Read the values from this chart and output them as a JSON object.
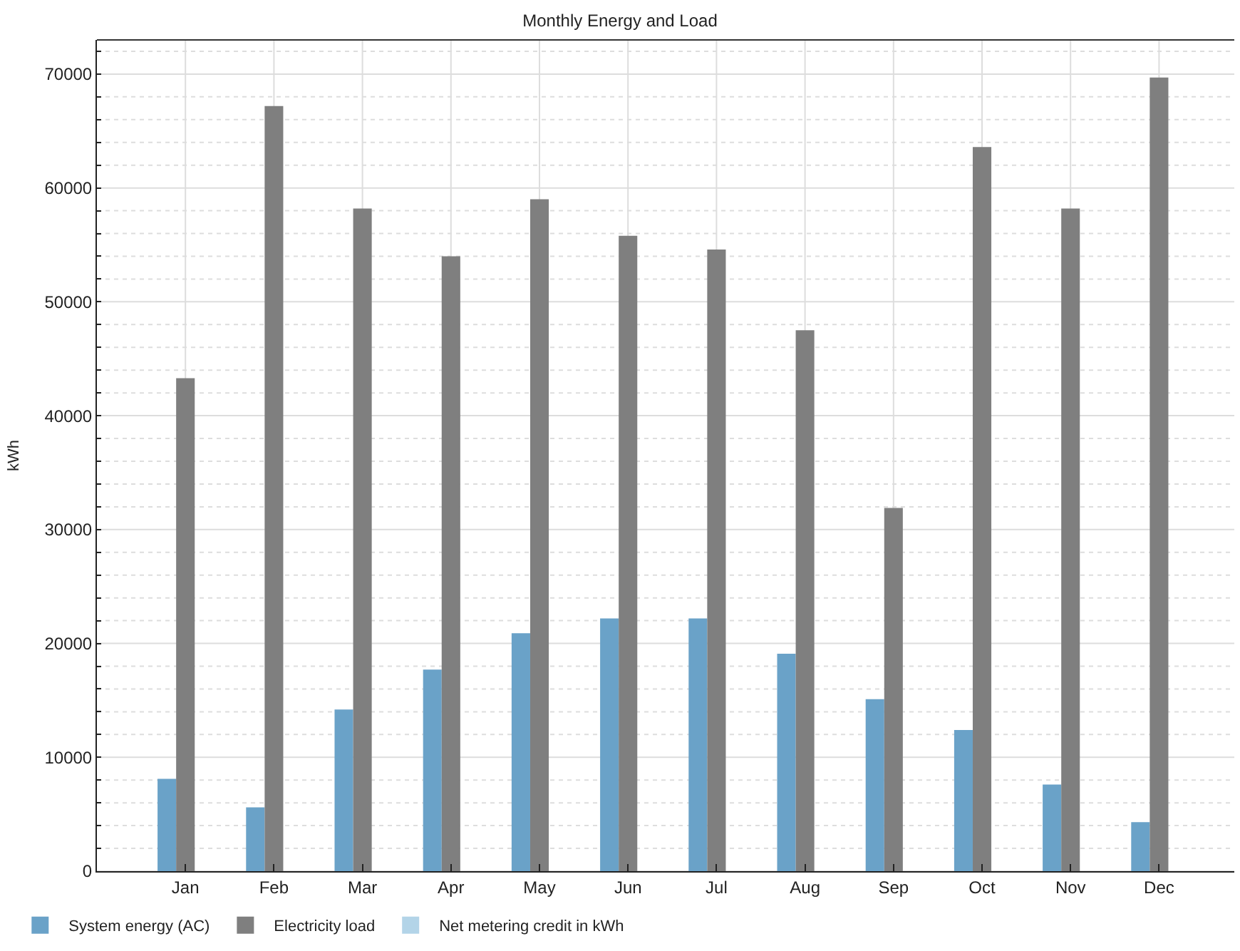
{
  "chart_data": {
    "type": "bar",
    "title": "Monthly Energy and Load",
    "ylabel": "kWh",
    "categories": [
      "Jan",
      "Feb",
      "Mar",
      "Apr",
      "May",
      "Jun",
      "Jul",
      "Aug",
      "Sep",
      "Oct",
      "Nov",
      "Dec"
    ],
    "series": [
      {
        "name": "System energy (AC)",
        "color": "#6aa2c8",
        "values": [
          8100,
          5600,
          14200,
          17700,
          20900,
          22200,
          22200,
          19100,
          15100,
          12400,
          7600,
          4300
        ]
      },
      {
        "name": "Electricity load",
        "color": "#7f7f7f",
        "values": [
          43300,
          67200,
          58200,
          54000,
          59000,
          55800,
          54600,
          47500,
          31900,
          63600,
          58200,
          69700
        ]
      },
      {
        "name": "Net metering credit in kWh",
        "color": "#b3d4e8",
        "values": [
          0,
          0,
          0,
          0,
          0,
          0,
          0,
          0,
          0,
          0,
          0,
          0
        ]
      }
    ],
    "ylim": [
      0,
      73000
    ],
    "yticks": [
      0,
      {
        "value": 2000,
        "label": null
      },
      {
        "value": 4000,
        "label": null
      },
      {
        "value": 6000,
        "label": null
      },
      {
        "value": 8000,
        "label": null
      },
      10000,
      {
        "value": 12000,
        "label": null
      },
      {
        "value": 14000,
        "label": null
      },
      {
        "value": 16000,
        "label": null
      },
      {
        "value": 18000,
        "label": null
      },
      20000,
      {
        "value": 22000,
        "label": null
      },
      {
        "value": 24000,
        "label": null
      },
      {
        "value": 26000,
        "label": null
      },
      {
        "value": 28000,
        "label": null
      },
      30000,
      {
        "value": 32000,
        "label": null
      },
      {
        "value": 34000,
        "label": null
      },
      {
        "value": 36000,
        "label": null
      },
      {
        "value": 38000,
        "label": null
      },
      40000,
      {
        "value": 42000,
        "label": null
      },
      {
        "value": 44000,
        "label": null
      },
      {
        "value": 46000,
        "label": null
      },
      {
        "value": 48000,
        "label": null
      },
      50000,
      {
        "value": 52000,
        "label": null
      },
      {
        "value": 54000,
        "label": null
      },
      {
        "value": 56000,
        "label": null
      },
      {
        "value": 58000,
        "label": null
      },
      60000,
      {
        "value": 62000,
        "label": null
      },
      {
        "value": 64000,
        "label": null
      },
      {
        "value": 66000,
        "label": null
      },
      {
        "value": 68000,
        "label": null
      },
      70000,
      {
        "value": 72000,
        "label": null
      }
    ],
    "grid": true,
    "legend": "bottom left"
  }
}
